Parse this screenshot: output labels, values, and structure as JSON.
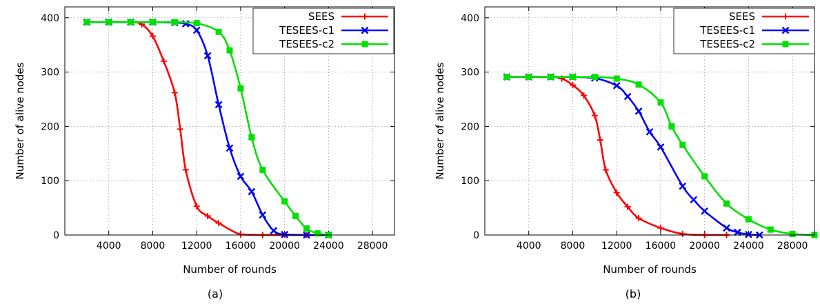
{
  "chart_data": [
    {
      "type": "line",
      "caption": "(a)",
      "xlabel": "Number of rounds",
      "ylabel": "Number of alive nodes",
      "xlim": [
        0,
        30000
      ],
      "ylim": [
        0,
        420
      ],
      "xticks": [
        4000,
        8000,
        12000,
        16000,
        20000,
        24000,
        28000
      ],
      "yticks": [
        0,
        100,
        200,
        300,
        400
      ],
      "grid": true,
      "legend": "top-right",
      "series": [
        {
          "name": "SEES",
          "color": "#ff0000",
          "marker": "plus",
          "x": [
            2000,
            4000,
            6000,
            7000,
            8000,
            9000,
            10000,
            10500,
            11000,
            12000,
            13000,
            14000,
            16000,
            18000,
            20000,
            22000,
            24000
          ],
          "y": [
            392,
            392,
            392,
            388,
            366,
            320,
            262,
            195,
            120,
            53,
            35,
            22,
            1,
            0,
            0,
            0,
            0
          ]
        },
        {
          "name": "TESEES-c1",
          "color": "#0000ff",
          "marker": "x",
          "x": [
            2000,
            4000,
            6000,
            8000,
            10000,
            11000,
            12000,
            13000,
            14000,
            15000,
            16000,
            17000,
            18000,
            19000,
            20000,
            22000,
            24000
          ],
          "y": [
            392,
            392,
            392,
            392,
            391,
            389,
            377,
            330,
            240,
            160,
            108,
            80,
            37,
            8,
            1,
            0,
            0
          ]
        },
        {
          "name": "TESEES-c2",
          "color": "#00e000",
          "marker": "square",
          "x": [
            2000,
            4000,
            6000,
            8000,
            10000,
            12000,
            14000,
            15000,
            16000,
            17000,
            18000,
            20000,
            21000,
            22000,
            23000,
            24000
          ],
          "y": [
            392,
            392,
            392,
            392,
            392,
            390,
            374,
            340,
            270,
            180,
            120,
            62,
            35,
            12,
            3,
            0
          ]
        }
      ]
    },
    {
      "type": "line",
      "caption": "(b)",
      "xlabel": "Number of rounds",
      "ylabel": "Number of alive nodes",
      "xlim": [
        0,
        30000
      ],
      "ylim": [
        0,
        420
      ],
      "xticks": [
        4000,
        8000,
        12000,
        16000,
        20000,
        24000,
        28000
      ],
      "yticks": [
        0,
        100,
        200,
        300,
        400
      ],
      "grid": true,
      "legend": "top-right",
      "series": [
        {
          "name": "SEES",
          "color": "#ff0000",
          "marker": "plus",
          "x": [
            2000,
            4000,
            6000,
            7000,
            8000,
            9000,
            10000,
            10500,
            11000,
            12000,
            13000,
            14000,
            16000,
            18000,
            20000,
            22000
          ],
          "y": [
            291,
            291,
            291,
            288,
            276,
            257,
            220,
            175,
            120,
            78,
            52,
            31,
            13,
            2,
            0,
            0
          ]
        },
        {
          "name": "TESEES-c1",
          "color": "#0000ff",
          "marker": "x",
          "x": [
            2000,
            4000,
            6000,
            8000,
            10000,
            12000,
            13000,
            14000,
            15000,
            16000,
            18000,
            19000,
            20000,
            22000,
            23000,
            24000,
            25000
          ],
          "y": [
            291,
            291,
            291,
            291,
            289,
            275,
            255,
            228,
            190,
            162,
            90,
            65,
            44,
            13,
            5,
            1,
            0
          ]
        },
        {
          "name": "TESEES-c2",
          "color": "#00e000",
          "marker": "square",
          "x": [
            2000,
            4000,
            6000,
            8000,
            10000,
            12000,
            14000,
            16000,
            17000,
            18000,
            20000,
            22000,
            24000,
            26000,
            28000,
            30000
          ],
          "y": [
            291,
            291,
            291,
            291,
            291,
            288,
            277,
            244,
            200,
            166,
            108,
            58,
            29,
            10,
            2,
            0
          ]
        }
      ]
    }
  ]
}
